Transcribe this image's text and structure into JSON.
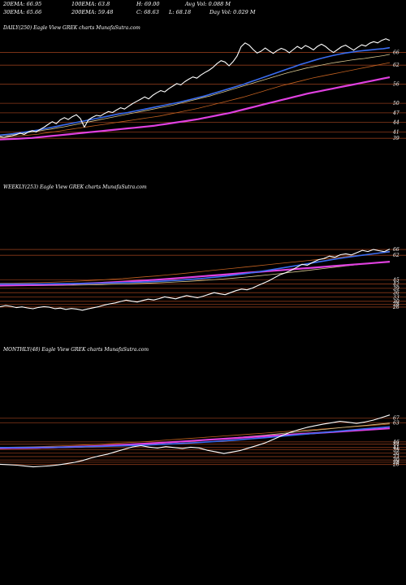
{
  "header": {
    "row1": [
      {
        "key": "ema20",
        "label": "20EMA: 66.95"
      },
      {
        "key": "ema100",
        "label": "100EMA: 63.8"
      },
      {
        "key": "high",
        "label": "H: 69.00"
      },
      {
        "key": "avgvol",
        "label": "Avg Vol: 0.088 M"
      }
    ],
    "row2": [
      {
        "key": "ema30",
        "label": "30EMA: 65.66"
      },
      {
        "key": "ema200",
        "label": "200EMA: 59.48"
      },
      {
        "key": "close",
        "label": "C: 68.63"
      },
      {
        "key": "low",
        "label": "L: 68.18"
      },
      {
        "key": "dayvol",
        "label": "Day Vol: 0.029 M"
      }
    ]
  },
  "colors": {
    "background": "#000000",
    "price": "#ffffff",
    "level_line": "#8b3a1a",
    "ema_fast": "#3a6cf0",
    "ema_slow": "#e040e0",
    "ema_mid": "#d8c890",
    "ema_orange": "#c06020"
  },
  "chart_data": [
    {
      "type": "line",
      "title": "DAILY(250) Eagle  View  GREK charts MunafaSutra.com",
      "levels": [
        66,
        62,
        56,
        50,
        47,
        44,
        41,
        39
      ],
      "y_range": [
        37,
        71
      ],
      "price": [
        39.5,
        39.3,
        39.6,
        39.8,
        40.1,
        40.6,
        40.2,
        40.9,
        41.4,
        41.0,
        41.8,
        42.5,
        43.4,
        44.2,
        43.6,
        44.8,
        45.5,
        44.9,
        45.8,
        46.4,
        45.2,
        42.5,
        44.8,
        45.6,
        46.2,
        46.0,
        46.8,
        47.4,
        47.1,
        47.9,
        48.6,
        48.2,
        49.1,
        49.9,
        50.6,
        51.3,
        52.0,
        51.4,
        52.5,
        53.3,
        54.0,
        53.6,
        54.6,
        55.4,
        56.2,
        55.8,
        56.8,
        57.6,
        58.3,
        57.9,
        58.9,
        59.7,
        60.4,
        61.3,
        62.5,
        63.4,
        63.0,
        61.8,
        63.1,
        64.9,
        67.8,
        69.0,
        68.3,
        66.9,
        65.8,
        66.4,
        67.4,
        66.5,
        65.7,
        66.6,
        67.3,
        66.8,
        65.9,
        66.9,
        67.9,
        67.2,
        68.2,
        67.6,
        66.8,
        67.9,
        68.6,
        67.9,
        66.8,
        66.0,
        66.9,
        67.8,
        68.3,
        67.5,
        66.7,
        67.6,
        68.4,
        68.0,
        68.9,
        69.4,
        69.0,
        69.8,
        70.3,
        69.8
      ],
      "ema_blue": [
        40.0,
        40.2,
        40.4,
        40.7,
        41.0,
        41.3,
        41.6,
        42.0,
        42.4,
        42.8,
        43.2,
        43.6,
        44.0,
        44.4,
        44.8,
        45.2,
        45.6,
        46.0,
        46.4,
        46.8,
        47.1,
        47.5,
        47.9,
        48.3,
        48.7,
        49.1,
        49.5,
        49.9,
        50.3,
        50.8,
        51.3,
        51.8,
        52.3,
        52.9,
        53.5,
        54.1,
        54.7,
        55.3,
        55.9,
        56.6,
        57.3,
        58.0,
        58.7,
        59.4,
        60.1,
        60.8,
        61.5,
        62.2,
        62.8,
        63.4,
        64.0,
        64.5,
        65.0,
        65.4,
        65.8,
        66.1,
        66.4,
        66.6,
        66.8,
        67.0,
        67.2,
        67.5
      ],
      "ema_white": [
        39.8,
        40.0,
        40.2,
        40.4,
        40.7,
        41.0,
        41.3,
        41.6,
        41.9,
        42.3,
        42.6,
        43.0,
        43.4,
        43.8,
        44.2,
        44.6,
        45.0,
        45.4,
        45.8,
        46.2,
        46.6,
        47.0,
        47.4,
        47.8,
        48.2,
        48.6,
        49.0,
        49.4,
        49.9,
        50.4,
        50.9,
        51.4,
        51.9,
        52.4,
        53.0,
        53.6,
        54.2,
        54.8,
        55.4,
        56.0,
        56.6,
        57.2,
        57.8,
        58.4,
        59.0,
        59.6,
        60.1,
        60.6,
        61.1,
        61.5,
        61.9,
        62.3,
        62.7,
        63.0,
        63.3,
        63.6,
        63.9,
        64.1,
        64.4,
        64.7,
        65.0,
        65.4
      ],
      "ema_magenta": [
        38.6,
        38.7,
        38.8,
        38.9,
        39.0,
        39.1,
        39.3,
        39.5,
        39.7,
        39.9,
        40.1,
        40.3,
        40.5,
        40.7,
        40.9,
        41.1,
        41.3,
        41.5,
        41.7,
        41.9,
        42.1,
        42.3,
        42.5,
        42.7,
        42.9,
        43.2,
        43.5,
        43.8,
        44.1,
        44.4,
        44.7,
        45.0,
        45.4,
        45.8,
        46.2,
        46.6,
        47.0,
        47.5,
        48.0,
        48.5,
        49.0,
        49.5,
        50.0,
        50.5,
        51.0,
        51.5,
        52.0,
        52.5,
        53.0,
        53.4,
        53.8,
        54.2,
        54.6,
        55.0,
        55.4,
        55.8,
        56.2,
        56.6,
        57.0,
        57.4,
        57.8,
        58.2
      ],
      "ema_orange": [
        39.2,
        39.3,
        39.5,
        39.7,
        39.9,
        40.1,
        40.3,
        40.6,
        40.9,
        41.2,
        41.5,
        41.8,
        42.1,
        42.4,
        42.7,
        43.0,
        43.3,
        43.6,
        43.9,
        44.2,
        44.5,
        44.8,
        45.1,
        45.4,
        45.7,
        46.0,
        46.4,
        46.8,
        47.2,
        47.6,
        48.0,
        48.4,
        48.9,
        49.4,
        49.9,
        50.4,
        50.9,
        51.4,
        51.9,
        52.5,
        53.1,
        53.7,
        54.3,
        54.9,
        55.5,
        56.0,
        56.5,
        57.0,
        57.5,
        58.0,
        58.4,
        58.8,
        59.2,
        59.6,
        60.0,
        60.4,
        60.8,
        61.2,
        61.6,
        62.0,
        62.4,
        62.8
      ]
    },
    {
      "type": "line",
      "title": "WEEKLY(253) Eagle  View  GREK charts MunafaSutra.com",
      "levels": [
        66,
        62,
        45,
        42,
        39,
        36,
        33,
        30,
        28,
        26
      ],
      "y_range": [
        22,
        70
      ],
      "price": [
        26.2,
        27.0,
        26.5,
        25.6,
        26.1,
        25.4,
        24.8,
        25.7,
        26.3,
        25.9,
        24.9,
        25.3,
        24.4,
        25.0,
        24.6,
        23.8,
        24.7,
        25.5,
        26.3,
        27.4,
        28.2,
        28.9,
        29.9,
        30.8,
        30.1,
        29.5,
        30.6,
        31.5,
        30.9,
        31.9,
        33.1,
        32.4,
        31.7,
        32.9,
        34.0,
        33.2,
        32.5,
        33.5,
        34.8,
        36.0,
        35.2,
        34.6,
        36.0,
        37.4,
        38.5,
        38.0,
        39.2,
        41.0,
        42.6,
        44.3,
        46.4,
        48.5,
        49.8,
        51.4,
        53.5,
        55.7,
        55.1,
        57.2,
        58.9,
        59.8,
        61.4,
        60.6,
        62.4,
        63.0,
        62.2,
        63.8,
        65.4,
        64.6,
        66.0,
        65.2,
        64.5,
        66.3
      ],
      "ema_blue": [
        42.0,
        42.0,
        42.0,
        42.1,
        42.1,
        42.2,
        42.3,
        42.4,
        42.5,
        42.6,
        42.8,
        43.0,
        43.2,
        43.5,
        43.8,
        44.2,
        44.6,
        45.2,
        45.8,
        46.5,
        47.3,
        48.2,
        49.2,
        50.3,
        51.5,
        52.7,
        54.0,
        55.3,
        56.6,
        57.9,
        59.2,
        60.4,
        61.5,
        62.5,
        63.5,
        64.5
      ],
      "ema_magenta": [
        41.0,
        41.1,
        41.2,
        41.3,
        41.5,
        41.7,
        41.9,
        42.2,
        42.5,
        42.8,
        43.2,
        43.6,
        44.0,
        44.5,
        45.0,
        45.5,
        46.1,
        46.7,
        47.3,
        47.9,
        48.5,
        49.1,
        49.7,
        50.3,
        50.9,
        51.5,
        52.1,
        52.7,
        53.3,
        53.9,
        54.5,
        55.1,
        55.7,
        56.3,
        56.9,
        57.5
      ],
      "ema_white": [
        40.8,
        40.8,
        40.9,
        40.9,
        41.0,
        41.1,
        41.2,
        41.3,
        41.4,
        41.6,
        41.8,
        42.0,
        42.2,
        42.5,
        42.8,
        43.1,
        43.5,
        43.9,
        44.4,
        44.9,
        45.5,
        46.1,
        46.8,
        47.5,
        48.3,
        49.1,
        50.0,
        50.9,
        51.8,
        52.7,
        53.6,
        54.5,
        55.4,
        56.2,
        57.0,
        57.8
      ],
      "ema_orange": [
        42.5,
        42.6,
        42.7,
        42.9,
        43.1,
        43.4,
        43.7,
        44.0,
        44.4,
        44.8,
        45.3,
        45.8,
        46.4,
        47.0,
        47.6,
        48.3,
        49.0,
        49.8,
        50.6,
        51.4,
        52.2,
        53.0,
        53.8,
        54.6,
        55.4,
        56.2,
        57.0,
        57.8,
        58.6,
        59.4,
        60.2,
        61.0,
        61.8,
        62.6,
        63.4,
        64.2
      ]
    },
    {
      "type": "line",
      "title": "MONTHLY(48) Eagle  View  GREK charts MunafaSutra.com",
      "levels": [
        67,
        63,
        46,
        44,
        41,
        39,
        36,
        33,
        30,
        28,
        26
      ],
      "y_range": [
        20,
        74
      ],
      "price": [
        26.2,
        25.8,
        25.4,
        24.6,
        23.9,
        24.3,
        24.8,
        25.6,
        26.7,
        27.9,
        29.6,
        31.8,
        33.7,
        35.2,
        37.4,
        39.5,
        41.6,
        42.7,
        41.4,
        40.6,
        41.8,
        41.0,
        40.2,
        41.3,
        40.7,
        38.6,
        37.2,
        35.7,
        37.1,
        38.4,
        40.7,
        42.8,
        45.2,
        48.4,
        51.6,
        54.5,
        56.8,
        58.8,
        60.4,
        61.8,
        63.0,
        64.2,
        63.4,
        62.4,
        63.6,
        65.3,
        67.5,
        69.9
      ],
      "ema_blue": [
        41.0,
        41.0,
        41.1,
        41.2,
        41.3,
        41.4,
        41.6,
        41.8,
        42.0,
        42.3,
        42.6,
        43.0,
        43.4,
        43.9,
        44.4,
        45.0,
        45.6,
        46.3,
        47.1,
        47.9,
        48.8,
        49.7,
        50.6,
        51.6,
        52.6,
        53.6,
        54.6,
        55.6,
        56.6,
        57.6,
        58.5,
        59.4
      ],
      "ema_magenta": [
        40.5,
        40.6,
        40.7,
        40.9,
        41.1,
        41.4,
        41.7,
        42.1,
        42.5,
        43.0,
        43.5,
        44.1,
        44.7,
        45.4,
        46.1,
        46.8,
        47.5,
        48.2,
        48.9,
        49.6,
        50.3,
        51.0,
        51.7,
        52.4,
        53.1,
        53.8,
        54.5,
        55.2,
        55.9,
        56.6,
        57.3,
        58.0
      ],
      "ema_white": [
        40.0,
        40.1,
        40.2,
        40.4,
        40.6,
        40.9,
        41.2,
        41.6,
        42.0,
        42.5,
        43.0,
        43.6,
        44.2,
        44.9,
        45.6,
        46.4,
        47.2,
        48.1,
        49.0,
        50.0,
        51.0,
        52.0,
        53.0,
        54.1,
        55.2,
        56.3,
        57.4,
        58.5,
        59.6,
        60.6,
        61.6,
        62.6
      ],
      "ema_orange": [
        41.2,
        41.4,
        41.6,
        41.9,
        42.2,
        42.6,
        43.0,
        43.5,
        44.0,
        44.6,
        45.2,
        45.9,
        46.6,
        47.4,
        48.2,
        49.0,
        49.8,
        50.6,
        51.4,
        52.2,
        53.0,
        53.8,
        54.6,
        55.4,
        56.2,
        57.0,
        57.8,
        58.6,
        59.4,
        60.2,
        61.0,
        61.8
      ]
    }
  ]
}
